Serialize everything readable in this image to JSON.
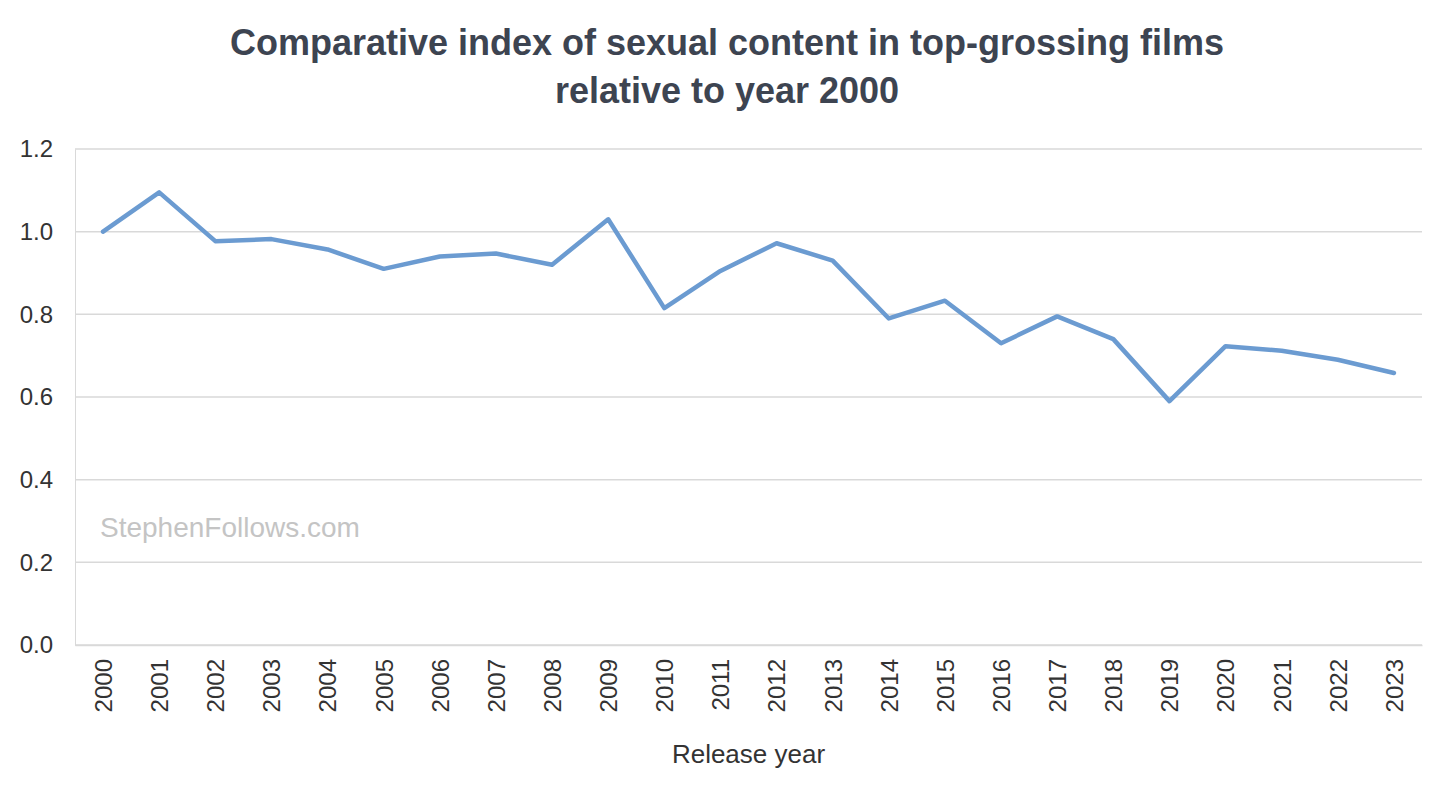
{
  "chart_data": {
    "type": "line",
    "title": "Comparative index of sexual content in top-grossing films\nrelative to year 2000",
    "x_label": "Release year",
    "annotations": [
      "StephenFollows.com"
    ],
    "categories": [
      "2000",
      "2001",
      "2002",
      "2003",
      "2004",
      "2005",
      "2006",
      "2007",
      "2008",
      "2009",
      "2010",
      "2011",
      "2012",
      "2013",
      "2014",
      "2015",
      "2016",
      "2017",
      "2018",
      "2019",
      "2020",
      "2021",
      "2022",
      "2023"
    ],
    "values": [
      1.0,
      1.095,
      0.977,
      0.982,
      0.957,
      0.91,
      0.94,
      0.947,
      0.92,
      1.03,
      0.815,
      0.905,
      0.972,
      0.93,
      0.79,
      0.833,
      0.73,
      0.795,
      0.74,
      0.59,
      0.723,
      0.712,
      0.69,
      0.658
    ],
    "color": "#6b9bd1",
    "ylim": [
      0,
      1.2
    ],
    "yticks": [
      {
        "value": 0,
        "label": "0.0"
      },
      {
        "value": 0.2,
        "label": "0.2"
      },
      {
        "value": 0.4,
        "label": "0.4"
      },
      {
        "value": 0.6,
        "label": "0.6"
      },
      {
        "value": 0.8,
        "label": "0.8"
      },
      {
        "value": 1.0,
        "label": "1.0"
      },
      {
        "value": 1.2,
        "label": "1.2"
      }
    ],
    "grid": true
  }
}
